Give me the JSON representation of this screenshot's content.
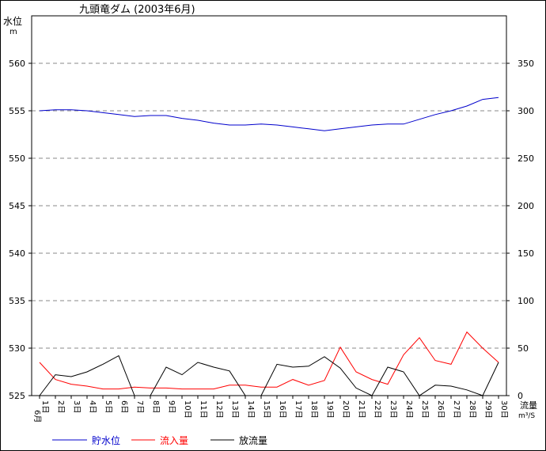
{
  "chart_data": {
    "type": "line",
    "title": "九頭竜ダム (2003年6月)",
    "left_axis_label": [
      "水位",
      "m"
    ],
    "right_axis_label": [
      "流量",
      "m³/S"
    ],
    "x_first_label_prefix": "6月",
    "x_tick_labels": [
      "1日",
      "2日",
      "3日",
      "4日",
      "5日",
      "6日",
      "7日",
      "8日",
      "9日",
      "10日",
      "11日",
      "12日",
      "13日",
      "14日",
      "15日",
      "16日",
      "17日",
      "18日",
      "19日",
      "20日",
      "21日",
      "22日",
      "23日",
      "24日",
      "25日",
      "26日",
      "27日",
      "28日",
      "29日",
      "30日"
    ],
    "y_left": {
      "min": 525,
      "max": 560,
      "ticks": [
        525,
        530,
        535,
        540,
        545,
        550,
        555,
        560
      ]
    },
    "y_right": {
      "min": 0,
      "max": 350,
      "ticks": [
        0,
        50,
        100,
        150,
        200,
        250,
        300,
        350
      ]
    },
    "grid": true,
    "legend_position": "bottom",
    "series": [
      {
        "name": "貯水位",
        "axis": "left",
        "color": "#0000cc",
        "values": [
          555.0,
          555.1,
          555.1,
          555.0,
          554.8,
          554.6,
          554.4,
          554.5,
          554.5,
          554.2,
          554.0,
          553.7,
          553.5,
          553.5,
          553.6,
          553.5,
          553.3,
          553.1,
          552.9,
          553.1,
          553.3,
          553.5,
          553.6,
          553.6,
          554.1,
          554.6,
          555.0,
          555.5,
          556.2,
          556.4
        ]
      },
      {
        "name": "流入量",
        "axis": "right",
        "color": "#ff0000",
        "values": [
          35,
          17,
          12,
          10,
          7,
          7,
          9,
          8,
          8,
          7,
          7,
          7,
          11,
          11,
          9,
          9,
          17,
          11,
          16,
          51,
          25,
          17,
          12,
          43,
          61,
          37,
          33,
          67,
          50,
          35
        ]
      },
      {
        "name": "放流量",
        "axis": "right",
        "color": "#000000",
        "values": [
          0,
          22,
          20,
          25,
          33,
          42,
          0,
          0,
          30,
          22,
          35,
          30,
          26,
          0,
          0,
          33,
          30,
          31,
          41,
          29,
          8,
          0,
          30,
          25,
          0,
          11,
          10,
          6,
          0,
          35
        ]
      }
    ]
  }
}
